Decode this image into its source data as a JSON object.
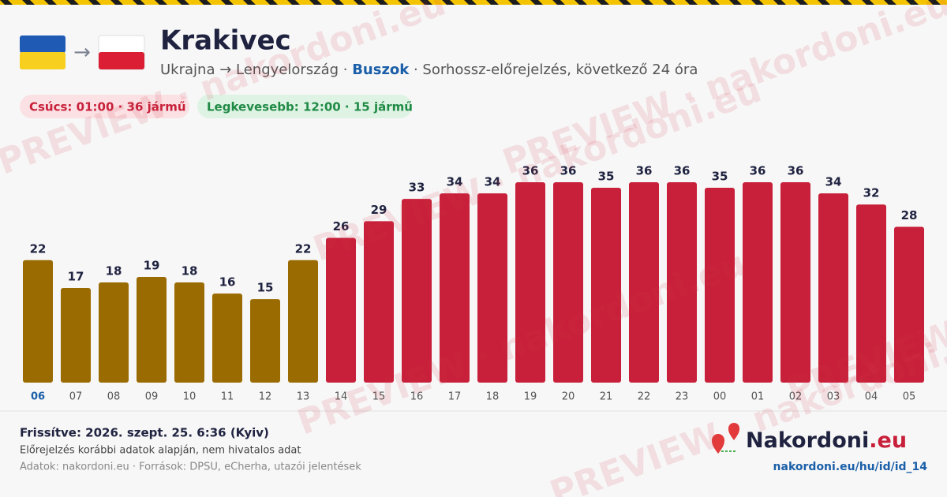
{
  "chart_data": {
    "type": "bar",
    "title": "Krakivec",
    "subtitle": {
      "route": "Ukrajna → Lengyelország · ",
      "mode": "Buszok",
      "rest": " · Sorhossz-előrejelzés, következő 24 óra"
    },
    "badges": {
      "peak": "Csúcs: 01:00 · 36 jármű",
      "low": "Legkevesebb: 12:00 · 15 jármű"
    },
    "categories": [
      "06",
      "07",
      "08",
      "09",
      "10",
      "11",
      "12",
      "13",
      "14",
      "15",
      "16",
      "17",
      "18",
      "19",
      "20",
      "21",
      "22",
      "23",
      "00",
      "01",
      "02",
      "03",
      "04",
      "05"
    ],
    "values": [
      22,
      17,
      18,
      19,
      18,
      16,
      15,
      22,
      26,
      29,
      33,
      34,
      34,
      36,
      36,
      35,
      36,
      36,
      35,
      36,
      36,
      34,
      32,
      28
    ],
    "colors": [
      "#9a6b00",
      "#9a6b00",
      "#9a6b00",
      "#9a6b00",
      "#9a6b00",
      "#9a6b00",
      "#9a6b00",
      "#9a6b00",
      "#c8203a",
      "#c8203a",
      "#c8203a",
      "#c8203a",
      "#c8203a",
      "#c8203a",
      "#c8203a",
      "#c8203a",
      "#c8203a",
      "#c8203a",
      "#c8203a",
      "#c8203a",
      "#c8203a",
      "#c8203a",
      "#c8203a",
      "#c8203a"
    ],
    "footer": {
      "updated": "Frissítve: 2026. szept. 25. 6:36 (Kyiv)",
      "note": "Előrejelzés korábbi adatok alapján, nem hivatalos adat",
      "sources": "Adatok: nakordoni.eu · Források: DPSU, eCherha, utazói jelentések",
      "brand": "Nakordoni",
      "brand_tld": ".eu",
      "url": "nakordoni.eu/hu/id/id_14"
    },
    "watermark": "PREVIEW · nakordoni.eu"
  }
}
